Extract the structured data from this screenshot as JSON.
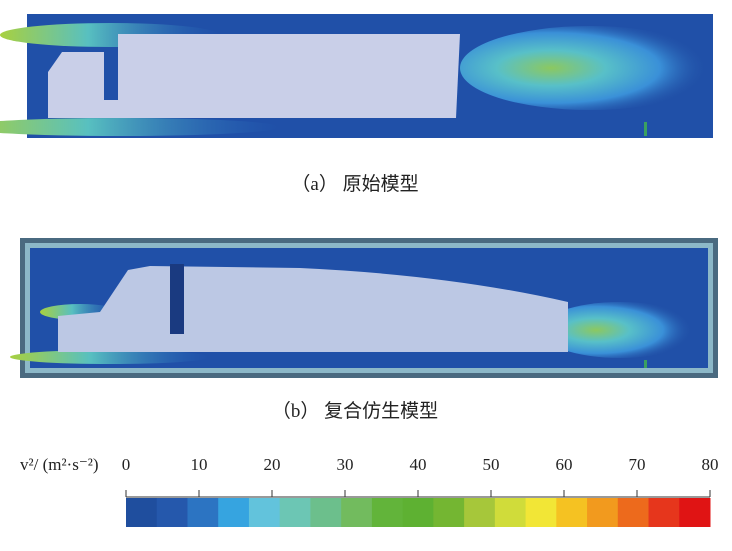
{
  "panel_a": {
    "caption": "（a） 原始模型"
  },
  "panel_b": {
    "caption": "（b） 复合仿生模型"
  },
  "colorbar": {
    "label": "v²/ (m²·s⁻²)",
    "lim": [
      0,
      80
    ],
    "ticks": [
      0,
      10,
      20,
      30,
      40,
      50,
      60,
      70,
      80
    ],
    "colors": [
      "#1f4e9e",
      "#2558ac",
      "#2c74c2",
      "#36a4e0",
      "#62c3dc",
      "#6cc6b4",
      "#6cbf8c",
      "#72bb5e",
      "#62b43a",
      "#5eb132",
      "#74b632",
      "#a6c73a",
      "#d0dc3a",
      "#f2e636",
      "#f5c222",
      "#f29a1e",
      "#ed6a1c",
      "#e6361c",
      "#e01414"
    ]
  }
}
